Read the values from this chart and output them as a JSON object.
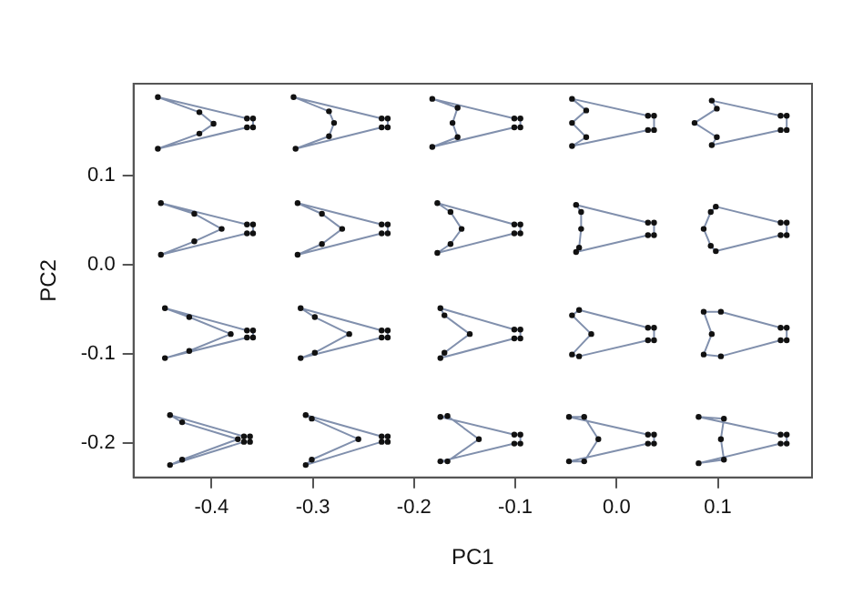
{
  "chart_data": {
    "type": "scatter",
    "xlabel": "PC1",
    "ylabel": "PC2",
    "xlim": [
      -0.477,
      0.193
    ],
    "ylim": [
      -0.239,
      0.203
    ],
    "xticks": [
      -0.4,
      -0.3,
      -0.2,
      -0.1,
      {
        "value": 0,
        "label": "0.0"
      },
      0.1
    ],
    "yticks": [
      -0.2,
      -0.1,
      {
        "value": 0,
        "label": "0.0"
      },
      0.1
    ],
    "grid": false,
    "legend": false,
    "marker": "circle",
    "series": [
      {
        "color": "#111111",
        "x": [
          -0.453,
          -0.412,
          -0.398,
          -0.412,
          -0.453,
          -0.365,
          -0.359,
          -0.359,
          -0.365
        ],
        "values": [
          0.188,
          0.171,
          0.158,
          0.147,
          0.13,
          0.154,
          0.154,
          0.164,
          0.164
        ]
      },
      {
        "color": "#111111",
        "x": [
          -0.319,
          -0.284,
          -0.279,
          -0.284,
          -0.317,
          -0.232,
          -0.226,
          -0.226,
          -0.232
        ],
        "values": [
          0.188,
          0.172,
          0.159,
          0.144,
          0.13,
          0.154,
          0.154,
          0.164,
          0.164
        ]
      },
      {
        "color": "#111111",
        "x": [
          -0.182,
          -0.157,
          -0.162,
          -0.157,
          -0.182,
          -0.101,
          -0.095,
          -0.095,
          -0.101
        ],
        "values": [
          0.186,
          0.176,
          0.159,
          0.143,
          0.132,
          0.154,
          0.154,
          0.164,
          0.164
        ]
      },
      {
        "color": "#111111",
        "x": [
          -0.044,
          -0.03,
          -0.044,
          -0.03,
          -0.044,
          0.031,
          0.037,
          0.037,
          0.031
        ],
        "values": [
          0.186,
          0.173,
          0.159,
          0.143,
          0.133,
          0.151,
          0.151,
          0.167,
          0.167
        ]
      },
      {
        "color": "#111111",
        "x": [
          0.094,
          0.099,
          0.077,
          0.099,
          0.094,
          0.162,
          0.168,
          0.168,
          0.162
        ],
        "values": [
          0.184,
          0.175,
          0.159,
          0.143,
          0.134,
          0.151,
          0.151,
          0.167,
          0.167
        ]
      },
      {
        "color": "#111111",
        "x": [
          -0.45,
          -0.417,
          -0.39,
          -0.417,
          -0.45,
          -0.365,
          -0.359,
          -0.359,
          -0.365
        ],
        "values": [
          0.069,
          0.057,
          0.04,
          0.026,
          0.011,
          0.035,
          0.035,
          0.045,
          0.045
        ]
      },
      {
        "color": "#111111",
        "x": [
          -0.315,
          -0.291,
          -0.271,
          -0.291,
          -0.315,
          -0.232,
          -0.226,
          -0.226,
          -0.232
        ],
        "values": [
          0.069,
          0.057,
          0.04,
          0.023,
          0.011,
          0.035,
          0.035,
          0.045,
          0.045
        ]
      },
      {
        "color": "#111111",
        "x": [
          -0.177,
          -0.164,
          -0.153,
          -0.164,
          -0.177,
          -0.101,
          -0.095,
          -0.095,
          -0.101
        ],
        "values": [
          0.069,
          0.059,
          0.04,
          0.023,
          0.013,
          0.035,
          0.035,
          0.045,
          0.045
        ]
      },
      {
        "color": "#111111",
        "x": [
          -0.04,
          -0.035,
          -0.035,
          -0.037,
          -0.04,
          0.031,
          0.037,
          0.037,
          0.031
        ],
        "values": [
          0.067,
          0.059,
          0.04,
          0.019,
          0.014,
          0.033,
          0.033,
          0.047,
          0.047
        ]
      },
      {
        "color": "#111111",
        "x": [
          0.098,
          0.093,
          0.086,
          0.093,
          0.098,
          0.162,
          0.168,
          0.168,
          0.162
        ],
        "values": [
          0.065,
          0.059,
          0.04,
          0.021,
          0.015,
          0.033,
          0.033,
          0.047,
          0.047
        ]
      },
      {
        "color": "#111111",
        "x": [
          -0.446,
          -0.422,
          -0.381,
          -0.422,
          -0.446,
          -0.365,
          -0.359,
          -0.359,
          -0.365
        ],
        "values": [
          -0.049,
          -0.059,
          -0.078,
          -0.097,
          -0.105,
          -0.082,
          -0.082,
          -0.074,
          -0.074
        ]
      },
      {
        "color": "#111111",
        "x": [
          -0.312,
          -0.298,
          -0.264,
          -0.298,
          -0.312,
          -0.232,
          -0.226,
          -0.226,
          -0.232
        ],
        "values": [
          -0.049,
          -0.059,
          -0.078,
          -0.099,
          -0.105,
          -0.082,
          -0.082,
          -0.074,
          -0.074
        ]
      },
      {
        "color": "#111111",
        "x": [
          -0.174,
          -0.17,
          -0.145,
          -0.17,
          -0.174,
          -0.101,
          -0.095,
          -0.095,
          -0.101
        ],
        "values": [
          -0.049,
          -0.057,
          -0.078,
          -0.099,
          -0.105,
          -0.083,
          -0.083,
          -0.073,
          -0.073
        ]
      },
      {
        "color": "#111111",
        "x": [
          -0.037,
          -0.044,
          -0.025,
          -0.044,
          -0.037,
          0.031,
          0.037,
          0.037,
          0.031
        ],
        "values": [
          -0.051,
          -0.057,
          -0.078,
          -0.101,
          -0.103,
          -0.085,
          -0.085,
          -0.071,
          -0.071
        ]
      },
      {
        "color": "#111111",
        "x": [
          0.103,
          0.086,
          0.094,
          0.086,
          0.103,
          0.162,
          0.168,
          0.168,
          0.162
        ],
        "values": [
          -0.053,
          -0.053,
          -0.078,
          -0.101,
          -0.103,
          -0.085,
          -0.085,
          -0.071,
          -0.071
        ]
      },
      {
        "color": "#111111",
        "x": [
          -0.441,
          -0.429,
          -0.374,
          -0.429,
          -0.441,
          -0.368,
          -0.362,
          -0.362,
          -0.368
        ],
        "values": [
          -0.169,
          -0.177,
          -0.196,
          -0.219,
          -0.225,
          -0.199,
          -0.199,
          -0.193,
          -0.193
        ]
      },
      {
        "color": "#111111",
        "x": [
          -0.307,
          -0.301,
          -0.255,
          -0.301,
          -0.307,
          -0.232,
          -0.226,
          -0.226,
          -0.232
        ],
        "values": [
          -0.169,
          -0.173,
          -0.196,
          -0.219,
          -0.225,
          -0.199,
          -0.199,
          -0.193,
          -0.193
        ]
      },
      {
        "color": "#111111",
        "x": [
          -0.174,
          -0.167,
          -0.136,
          -0.167,
          -0.174,
          -0.101,
          -0.095,
          -0.095,
          -0.101
        ],
        "values": [
          -0.171,
          -0.17,
          -0.196,
          -0.221,
          -0.221,
          -0.201,
          -0.201,
          -0.191,
          -0.191
        ]
      },
      {
        "color": "#111111",
        "x": [
          -0.047,
          -0.032,
          -0.018,
          -0.032,
          -0.047,
          0.031,
          0.037,
          0.037,
          0.031
        ],
        "values": [
          -0.171,
          -0.171,
          -0.196,
          -0.221,
          -0.221,
          -0.201,
          -0.201,
          -0.191,
          -0.191
        ]
      },
      {
        "color": "#111111",
        "x": [
          0.081,
          0.106,
          0.103,
          0.106,
          0.081,
          0.162,
          0.168,
          0.168,
          0.162
        ],
        "values": [
          -0.171,
          -0.173,
          -0.196,
          -0.219,
          -0.223,
          -0.201,
          -0.201,
          -0.191,
          -0.191
        ]
      }
    ]
  }
}
